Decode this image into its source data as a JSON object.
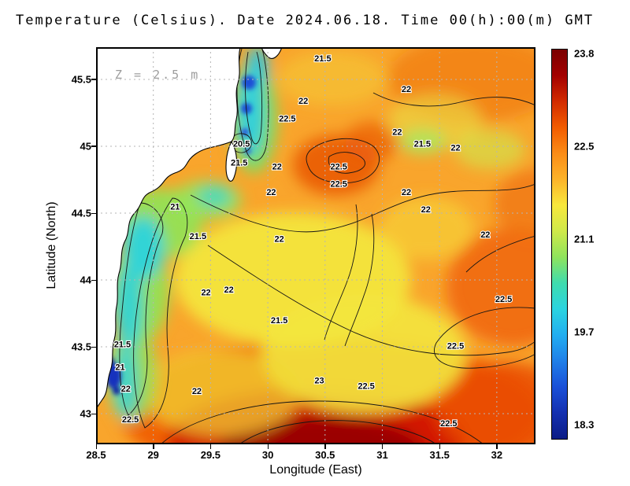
{
  "title": "Temperature (Celsius). Date 2024.06.18. Time 00(h):00(m) GMT",
  "annotation": "Z = 2.5 m",
  "axes": {
    "xlabel": "Longitude (East)",
    "ylabel": "Latitude (North)",
    "x_ticks": [
      "28.5",
      "29",
      "29.5",
      "30",
      "30.5",
      "31",
      "31.5",
      "32"
    ],
    "y_ticks": [
      "45.5",
      "45",
      "44.5",
      "44",
      "43.5",
      "43"
    ]
  },
  "colorbar": {
    "ticks": [
      "23.8",
      "22.5",
      "21.1",
      "19.7",
      "18.3"
    ],
    "gradient": [
      "#7a0000",
      "#a30000",
      "#d22b00",
      "#f25c00",
      "#fb8c17",
      "#fcb32a",
      "#f8e83c",
      "#cfe94a",
      "#8fe35c",
      "#3fdcae",
      "#2bd4e0",
      "#22aef0",
      "#1f7fe8",
      "#1a50d8",
      "#1430b0",
      "#0c1c86"
    ]
  },
  "chart_data": {
    "type": "heatmap",
    "title": "Temperature (Celsius). Date 2024.06.18. Time 00(h):00(m) GMT",
    "variable": "Temperature",
    "units": "Celsius",
    "date": "2024.06.18",
    "time": "00(h):00(m) GMT",
    "depth_annotation": "Z = 2.5 m",
    "xlabel": "Longitude (East)",
    "ylabel": "Latitude (North)",
    "x_range": [
      28.5,
      32.34
    ],
    "y_range": [
      42.77,
      45.74
    ],
    "x_ticks": [
      28.5,
      29,
      29.5,
      30,
      30.5,
      31,
      31.5,
      32
    ],
    "y_ticks": [
      43,
      43.5,
      44,
      44.5,
      45,
      45.5
    ],
    "grid": true,
    "colorbar_range": [
      18.3,
      23.8
    ],
    "colorbar_ticks": [
      23.8,
      22.5,
      21.1,
      19.7,
      18.3
    ],
    "contour_levels": [
      20.5,
      21,
      21.5,
      22,
      22.5,
      23
    ],
    "contour_labels": [
      {
        "v": "21.5",
        "lon": 30.48,
        "lat": 45.66
      },
      {
        "v": "22",
        "lon": 31.21,
        "lat": 45.43
      },
      {
        "v": "22",
        "lon": 30.31,
        "lat": 45.34
      },
      {
        "v": "22.5",
        "lon": 30.17,
        "lat": 45.21
      },
      {
        "v": "22",
        "lon": 31.13,
        "lat": 45.11
      },
      {
        "v": "21.5",
        "lon": 31.35,
        "lat": 45.02
      },
      {
        "v": "22",
        "lon": 31.64,
        "lat": 44.99
      },
      {
        "v": "20.5",
        "lon": 29.77,
        "lat": 45.02
      },
      {
        "v": "21.5",
        "lon": 29.75,
        "lat": 44.88
      },
      {
        "v": "22",
        "lon": 30.08,
        "lat": 44.85
      },
      {
        "v": "22.5",
        "lon": 30.62,
        "lat": 44.85
      },
      {
        "v": "22.5",
        "lon": 30.62,
        "lat": 44.72
      },
      {
        "v": "22",
        "lon": 30.03,
        "lat": 44.66
      },
      {
        "v": "22",
        "lon": 31.21,
        "lat": 44.66
      },
      {
        "v": "21",
        "lon": 29.19,
        "lat": 44.55
      },
      {
        "v": "22",
        "lon": 31.38,
        "lat": 44.53
      },
      {
        "v": "21.5",
        "lon": 29.39,
        "lat": 44.33
      },
      {
        "v": "22",
        "lon": 30.1,
        "lat": 44.31
      },
      {
        "v": "22",
        "lon": 31.9,
        "lat": 44.34
      },
      {
        "v": "22",
        "lon": 29.46,
        "lat": 43.91
      },
      {
        "v": "22",
        "lon": 29.66,
        "lat": 43.93
      },
      {
        "v": "22.5",
        "lon": 32.06,
        "lat": 43.86
      },
      {
        "v": "21.5",
        "lon": 30.1,
        "lat": 43.7
      },
      {
        "v": "21.5",
        "lon": 28.73,
        "lat": 43.52
      },
      {
        "v": "22.5",
        "lon": 31.64,
        "lat": 43.51
      },
      {
        "v": "21",
        "lon": 28.71,
        "lat": 43.35
      },
      {
        "v": "23",
        "lon": 30.45,
        "lat": 43.25
      },
      {
        "v": "22.5",
        "lon": 30.86,
        "lat": 43.21
      },
      {
        "v": "22",
        "lon": 28.76,
        "lat": 43.19
      },
      {
        "v": "22",
        "lon": 29.38,
        "lat": 43.17
      },
      {
        "v": "22.5",
        "lon": 28.8,
        "lat": 42.96
      },
      {
        "v": "22.5",
        "lon": 31.58,
        "lat": 42.93
      }
    ]
  }
}
